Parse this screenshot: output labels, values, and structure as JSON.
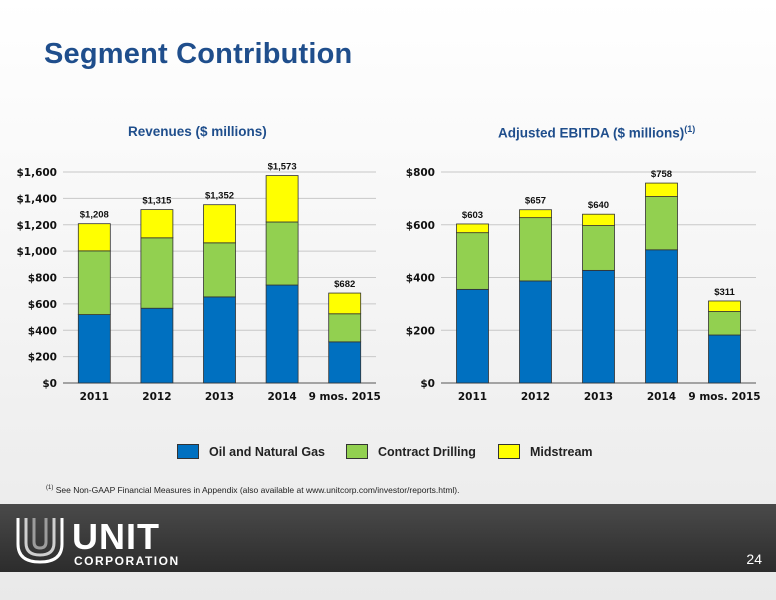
{
  "slide": {
    "title": "Segment Contribution",
    "footnote_marker": "(1)",
    "footnote_text": " See Non-GAAP Financial Measures in Appendix (also available at www.unitcorp.com/investor/reports.html).",
    "page_number": "24",
    "logo": {
      "name": "UNIT",
      "sub": "CORPORATION"
    }
  },
  "legend": [
    {
      "label": "Oil and Natural Gas",
      "color": "#0070c0"
    },
    {
      "label": "Contract Drilling",
      "color": "#92d050"
    },
    {
      "label": "Midstream",
      "color": "#ffff00"
    }
  ],
  "chart_data": [
    {
      "type": "bar",
      "stacked": true,
      "title": "Revenues ($ millions)",
      "title_sup": "",
      "categories": [
        "2011",
        "2012",
        "2013",
        "2014",
        "9 mos. 2015"
      ],
      "series": [
        {
          "name": "Oil and Natural Gas",
          "values": [
            519,
            567,
            653,
            743,
            312
          ]
        },
        {
          "name": "Contract Drilling",
          "values": [
            483,
            534,
            410,
            478,
            213
          ]
        },
        {
          "name": "Midstream",
          "values": [
            206,
            214,
            289,
            352,
            157
          ]
        }
      ],
      "totals": [
        "$1,208",
        "$1,315",
        "$1,352",
        "$1,573",
        "$682"
      ],
      "ylim": [
        0,
        1600
      ],
      "yticks": [
        0,
        200,
        400,
        600,
        800,
        1000,
        1200,
        1400,
        1600
      ],
      "ytick_labels": [
        "$0",
        "$200",
        "$400",
        "$600",
        "$800",
        "$1,000",
        "$1,200",
        "$1,400",
        "$1,600"
      ],
      "grid": true
    },
    {
      "type": "bar",
      "stacked": true,
      "title": "Adjusted EBITDA ($ millions)",
      "title_sup": "(1)",
      "categories": [
        "2011",
        "2012",
        "2013",
        "2014",
        "9 mos. 2015"
      ],
      "series": [
        {
          "name": "Oil and Natural Gas",
          "values": [
            355,
            387,
            427,
            505,
            182
          ]
        },
        {
          "name": "Contract Drilling",
          "values": [
            215,
            240,
            170,
            202,
            89
          ]
        },
        {
          "name": "Midstream",
          "values": [
            33,
            30,
            43,
            51,
            40
          ]
        }
      ],
      "totals": [
        "$603",
        "$657",
        "$640",
        "$758",
        "$311"
      ],
      "ylim": [
        0,
        800
      ],
      "yticks": [
        0,
        200,
        400,
        600,
        800
      ],
      "ytick_labels": [
        "$0",
        "$200",
        "$400",
        "$600",
        "$800"
      ],
      "grid": true
    }
  ]
}
